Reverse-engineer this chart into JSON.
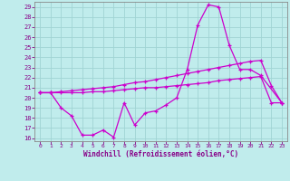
{
  "background_color": "#c0ecec",
  "grid_color": "#a0d4d4",
  "line_color": "#cc00cc",
  "xlabel": "Windchill (Refroidissement éolien,°C)",
  "xlabel_color": "#880088",
  "tick_color": "#880088",
  "spine_color": "#888888",
  "xlim": [
    -0.5,
    23.5
  ],
  "ylim": [
    15.7,
    29.5
  ],
  "xticks": [
    0,
    1,
    2,
    3,
    4,
    5,
    6,
    7,
    8,
    9,
    10,
    11,
    12,
    13,
    14,
    15,
    16,
    17,
    18,
    19,
    20,
    21,
    22,
    23
  ],
  "yticks": [
    16,
    17,
    18,
    19,
    20,
    21,
    22,
    23,
    24,
    25,
    26,
    27,
    28,
    29
  ],
  "line1_x": [
    0,
    1,
    2,
    3,
    4,
    5,
    6,
    7,
    8,
    9,
    10,
    11,
    12,
    13,
    14,
    15,
    16,
    17,
    18,
    19,
    20,
    21,
    23
  ],
  "line1_y": [
    20.5,
    20.5,
    19.0,
    18.2,
    16.3,
    16.3,
    16.8,
    16.1,
    19.5,
    17.3,
    18.5,
    18.7,
    19.3,
    20.0,
    22.8,
    27.2,
    29.2,
    29.0,
    25.2,
    22.8,
    22.8,
    22.2,
    19.5
  ],
  "line2_x": [
    0,
    1,
    2,
    3,
    4,
    5,
    6,
    7,
    8,
    9,
    10,
    11,
    12,
    13,
    14,
    15,
    16,
    17,
    18,
    19,
    20,
    21,
    22,
    23
  ],
  "line2_y": [
    20.5,
    20.5,
    20.6,
    20.7,
    20.8,
    20.9,
    21.0,
    21.1,
    21.3,
    21.5,
    21.6,
    21.8,
    22.0,
    22.2,
    22.4,
    22.6,
    22.8,
    23.0,
    23.2,
    23.4,
    23.6,
    23.7,
    21.2,
    19.5
  ],
  "line3_x": [
    0,
    1,
    2,
    3,
    4,
    5,
    6,
    7,
    8,
    9,
    10,
    11,
    12,
    13,
    14,
    15,
    16,
    17,
    18,
    19,
    20,
    21,
    22,
    23
  ],
  "line3_y": [
    20.5,
    20.5,
    20.5,
    20.5,
    20.5,
    20.6,
    20.6,
    20.7,
    20.8,
    20.9,
    21.0,
    21.0,
    21.1,
    21.2,
    21.3,
    21.4,
    21.5,
    21.7,
    21.8,
    21.9,
    22.0,
    22.1,
    19.5,
    19.5
  ]
}
